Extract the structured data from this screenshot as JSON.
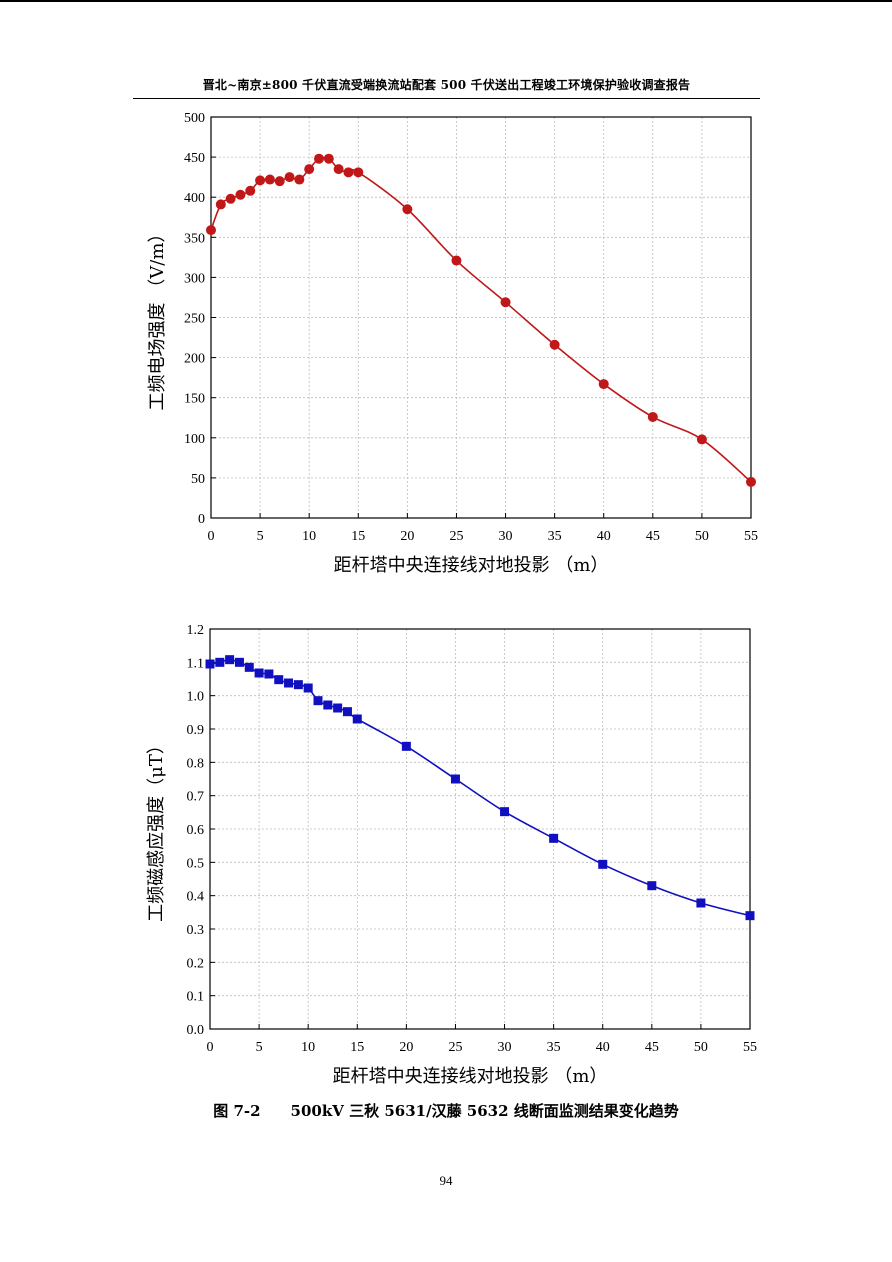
{
  "header": {
    "title": "晋北~南京±800 千伏直流受端换流站配套 500 千伏送出工程竣工环境保护验收调查报告"
  },
  "colors": {
    "series1": "#c01818",
    "series2": "#1010c0"
  },
  "chart_data": [
    {
      "type": "line",
      "marker": "circle",
      "color": "#c01818",
      "xlabel": "距杆塔中央连接线对地投影 （m）",
      "ylabel": "工频电场强度 （V/m）",
      "xlim": [
        0,
        55
      ],
      "ylim": [
        0,
        500
      ],
      "xticks": [
        0,
        5,
        10,
        15,
        20,
        25,
        30,
        35,
        40,
        45,
        50,
        55
      ],
      "yticks": [
        0,
        50,
        100,
        150,
        200,
        250,
        300,
        350,
        400,
        450,
        500
      ],
      "grid": true,
      "x": [
        0,
        1,
        2,
        3,
        4,
        5,
        6,
        7,
        8,
        9,
        10,
        11,
        12,
        13,
        14,
        15,
        20,
        25,
        30,
        35,
        40,
        45,
        50,
        55
      ],
      "values": [
        359,
        391,
        398,
        403,
        408,
        421,
        422,
        420,
        425,
        422,
        435,
        448,
        448,
        435,
        431,
        431,
        385,
        321,
        269,
        216,
        167,
        126,
        98,
        45
      ]
    },
    {
      "type": "line",
      "marker": "square",
      "color": "#1010c0",
      "xlabel": "距杆塔中央连接线对地投影 （m）",
      "ylabel": "工频磁感应强度（μT）",
      "xlim": [
        0,
        55
      ],
      "ylim": [
        0,
        1.2
      ],
      "xticks": [
        0,
        5,
        10,
        15,
        20,
        25,
        30,
        35,
        40,
        45,
        50,
        55
      ],
      "yticks": [
        "0.0",
        "0.1",
        "0.2",
        "0.3",
        "0.4",
        "0.5",
        "0.6",
        "0.7",
        "0.8",
        "0.9",
        "1.0",
        "1.1",
        "1.2"
      ],
      "grid": true,
      "x": [
        0,
        1,
        2,
        3,
        4,
        5,
        6,
        7,
        8,
        9,
        10,
        11,
        12,
        13,
        14,
        15,
        20,
        25,
        30,
        35,
        40,
        45,
        50,
        55
      ],
      "values": [
        1.095,
        1.1,
        1.108,
        1.1,
        1.085,
        1.068,
        1.065,
        1.048,
        1.038,
        1.033,
        1.023,
        0.985,
        0.972,
        0.963,
        0.952,
        0.93,
        0.848,
        0.75,
        0.652,
        0.572,
        0.494,
        0.43,
        0.378,
        0.34
      ]
    }
  ],
  "caption": "图 7-2　　500kV 三秋 5631/汉藤 5632 线断面监测结果变化趋势",
  "page_number": "94"
}
